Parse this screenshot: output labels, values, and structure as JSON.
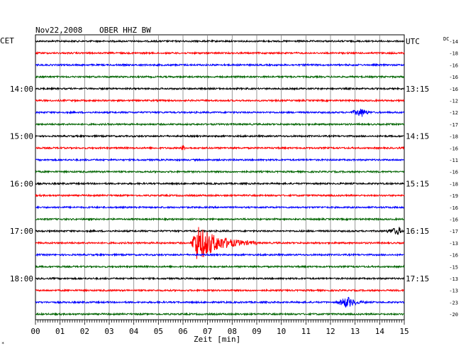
{
  "chart_data": {
    "type": "line",
    "title": "Nov22,2008",
    "station": "OBER HHZ BW",
    "left_timezone": "CET",
    "right_timezone": "UTC",
    "dc_label": "DC",
    "xlabel": "Zeit [min]",
    "xlim": [
      0,
      15
    ],
    "x_ticks": [
      "00",
      "01",
      "02",
      "03",
      "04",
      "05",
      "06",
      "07",
      "08",
      "09",
      "10",
      "11",
      "12",
      "13",
      "14",
      "15"
    ],
    "left_hour_labels": [
      {
        "trace": 4,
        "label": "14:00"
      },
      {
        "trace": 8,
        "label": "15:00"
      },
      {
        "trace": 12,
        "label": "16:00"
      },
      {
        "trace": 16,
        "label": "17:00"
      },
      {
        "trace": 20,
        "label": "18:00"
      }
    ],
    "right_hour_labels": [
      {
        "trace": 0,
        "label": "UTC"
      },
      {
        "trace": 4,
        "label": "13:15"
      },
      {
        "trace": 8,
        "label": "14:15"
      },
      {
        "trace": 12,
        "label": "15:15"
      },
      {
        "trace": 16,
        "label": "16:15"
      },
      {
        "trace": 20,
        "label": "17:15"
      }
    ],
    "trace_colors": [
      "#000000",
      "#ff0000",
      "#0000ff",
      "#006400"
    ],
    "dc_offsets": [
      -14,
      -18,
      -16,
      -16,
      -16,
      -12,
      -12,
      -17,
      -18,
      -16,
      -11,
      -16,
      -18,
      -19,
      -16,
      -16,
      -17,
      -13,
      -16,
      -15,
      -13,
      -13,
      -23,
      -20
    ],
    "traces_count": 24,
    "events": [
      {
        "trace": 6,
        "start_min": 12.8,
        "peak_min": 13.3,
        "end_min": 13.7,
        "amplitude": 0.35
      },
      {
        "trace": 9,
        "start_min": 5.9,
        "peak_min": 6.0,
        "end_min": 6.1,
        "amplitude": 0.25
      },
      {
        "trace": 16,
        "start_min": 14.2,
        "peak_min": 14.8,
        "end_min": 15.0,
        "amplitude": 0.3
      },
      {
        "trace": 17,
        "start_min": 6.3,
        "peak_min": 6.6,
        "end_min": 9.0,
        "amplitude": 1.6
      },
      {
        "trace": 22,
        "start_min": 12.2,
        "peak_min": 12.7,
        "end_min": 13.5,
        "amplitude": 0.45
      }
    ]
  }
}
